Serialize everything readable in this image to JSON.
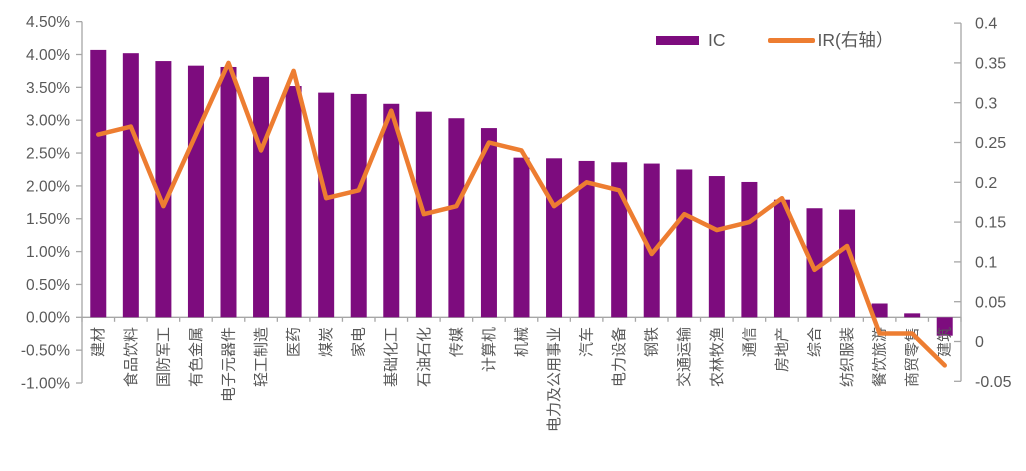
{
  "chart_data": {
    "type": "bar",
    "subtype": "combo-bar-line-dual-axis",
    "title": "",
    "grid": false,
    "legend_position": "top-right",
    "categories": [
      "建材",
      "食品饮料",
      "国防军工",
      "有色金属",
      "电子元器件",
      "轻工制造",
      "医药",
      "煤炭",
      "家电",
      "基础化工",
      "石油石化",
      "传媒",
      "计算机",
      "机械",
      "电力及公用事业",
      "汽车",
      "电力设备",
      "钢铁",
      "交通运输",
      "农林牧渔",
      "通信",
      "房地产",
      "综合",
      "纺织服装",
      "餐饮旅游",
      "商贸零售",
      "建筑"
    ],
    "series": [
      {
        "name": "IC",
        "type": "bar",
        "axis": "left",
        "unit": "%",
        "color": "#7D0C7E",
        "values": [
          4.07,
          4.02,
          3.9,
          3.83,
          3.81,
          3.66,
          3.52,
          3.42,
          3.4,
          3.25,
          3.13,
          3.03,
          2.88,
          2.43,
          2.42,
          2.38,
          2.36,
          2.34,
          2.25,
          2.15,
          2.06,
          1.79,
          1.66,
          1.64,
          0.21,
          0.06,
          -0.28
        ]
      },
      {
        "name": "IR(右轴）",
        "type": "line",
        "axis": "right",
        "color": "#ED7D31",
        "values": [
          0.26,
          0.27,
          0.17,
          0.26,
          0.35,
          0.24,
          0.34,
          0.18,
          0.19,
          0.29,
          0.16,
          0.17,
          0.25,
          0.24,
          0.17,
          0.2,
          0.19,
          0.11,
          0.16,
          0.14,
          0.15,
          0.18,
          0.09,
          0.12,
          0.01,
          0.01,
          -0.03
        ]
      }
    ],
    "left_axis": {
      "min": -1.0,
      "max": 4.5,
      "step": 0.5,
      "unit": "%",
      "tick_labels": [
        "4.50%",
        "4.00%",
        "3.50%",
        "3.00%",
        "2.50%",
        "2.00%",
        "1.50%",
        "1.00%",
        "0.50%",
        "0.00%",
        "-0.50%",
        "-1.00%"
      ]
    },
    "right_axis": {
      "min": -0.05,
      "max": 0.4,
      "step": 0.05,
      "tick_labels": [
        "0.4",
        "0.35",
        "0.3",
        "0.25",
        "0.2",
        "0.15",
        "0.1",
        "0.05",
        "0",
        "-0.05"
      ]
    }
  },
  "legend": {
    "items": [
      {
        "label": "IC",
        "swatch": "bar"
      },
      {
        "label": "IR(右轴）",
        "swatch": "line"
      }
    ]
  },
  "colors": {
    "bar": "#7D0C7E",
    "line": "#ED7D31",
    "axis": "#A6A6A6",
    "text": "#595959",
    "background": "#FFFFFF"
  }
}
